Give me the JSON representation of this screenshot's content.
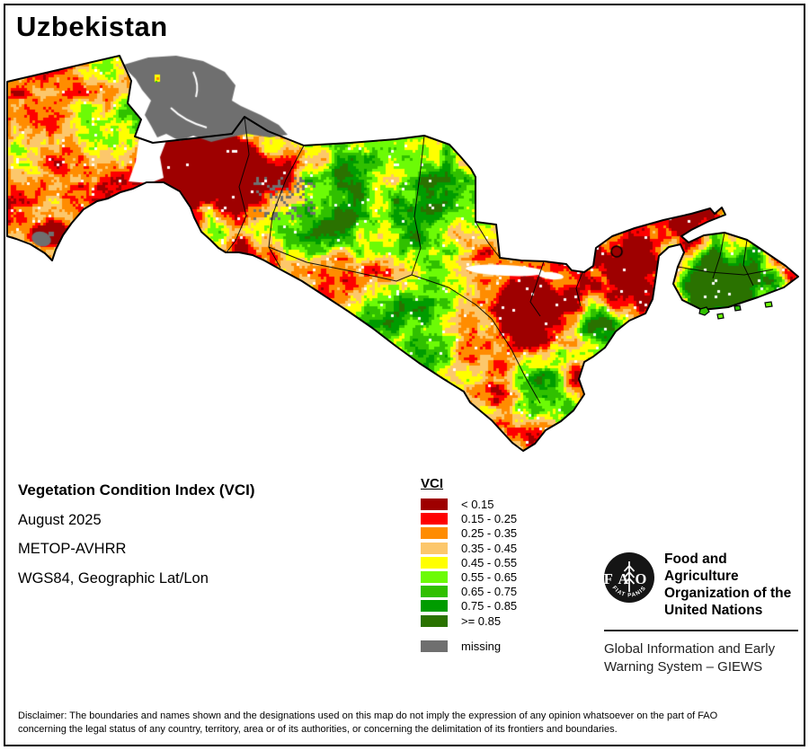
{
  "title": "Uzbekistan",
  "info": {
    "product": "Vegetation Condition Index (VCI)",
    "date": "August 2025",
    "sensor": "METOP-AVHRR",
    "projection": "WGS84, Geographic Lat/Lon"
  },
  "legend": {
    "title": "VCI",
    "classes": [
      {
        "label": "< 0.15",
        "color": "#9E0000"
      },
      {
        "label": "0.15 - 0.25",
        "color": "#FE0000"
      },
      {
        "label": "0.25 - 0.35",
        "color": "#FF8C00"
      },
      {
        "label": "0.35 - 0.45",
        "color": "#FCC76B"
      },
      {
        "label": "0.45 - 0.55",
        "color": "#FFFF00"
      },
      {
        "label": "0.55 - 0.65",
        "color": "#6CFB06"
      },
      {
        "label": "0.65 - 0.75",
        "color": "#30C000"
      },
      {
        "label": "0.75 - 0.85",
        "color": "#009C00"
      },
      {
        "label": ">= 0.85",
        "color": "#2A7200"
      }
    ],
    "missing": {
      "label": "missing",
      "color": "#6F6F6F"
    }
  },
  "branding": {
    "logo_text": "FAO",
    "logo_motto": "FIAT PANIS",
    "org_line1": "Food and Agriculture",
    "org_line2": "Organization of the",
    "org_line3": "United Nations",
    "giews_line1": "Global Information and Early",
    "giews_line2": "Warning System – GIEWS"
  },
  "disclaimer": {
    "line1": "Disclaimer: The boundaries and names shown and the designations used on this map do not imply the expression of any opinion whatsoever on the part of FAO",
    "line2": "concerning the legal status of any country, territory, area or of its authorities, or concerning the delimitation of its frontiers and boundaries."
  }
}
